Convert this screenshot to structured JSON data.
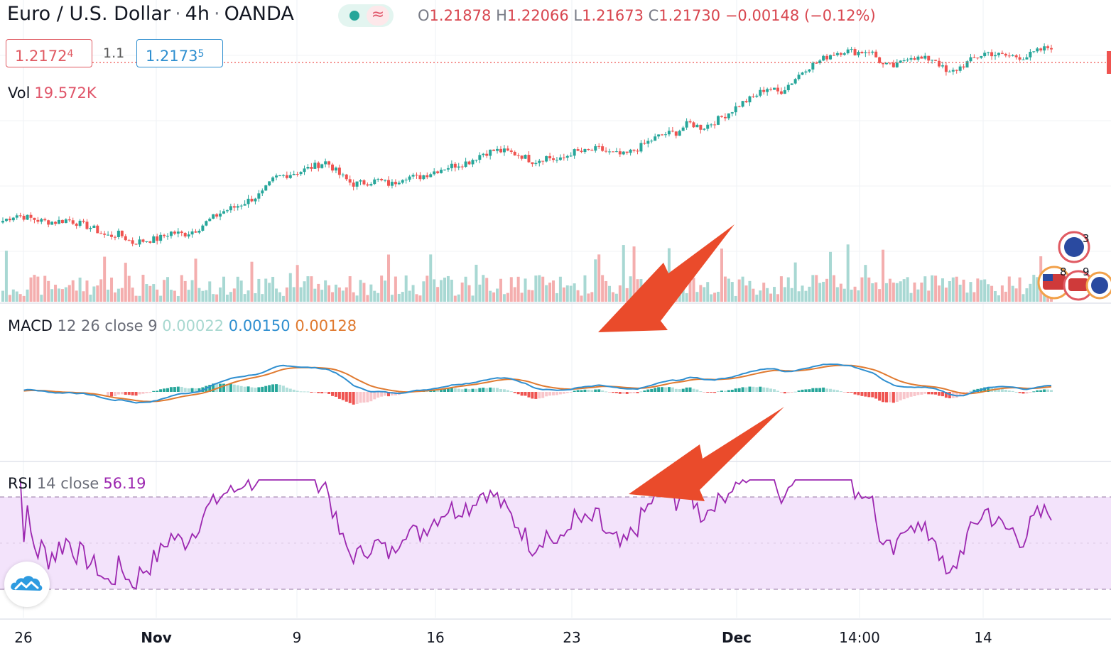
{
  "header": {
    "symbol": "Euro / U.S. Dollar",
    "interval": "4h",
    "exchange": "OANDA",
    "sep": "·",
    "status_icon": "≈",
    "ohlc": {
      "o_label": "O",
      "o": "1.21878",
      "h_label": "H",
      "h": "1.22066",
      "l_label": "L",
      "l": "1.21673",
      "c_label": "C",
      "c": "1.21730",
      "change": "−0.00148 (−0.12%)"
    }
  },
  "quote": {
    "bid_main": "1.2172",
    "bid_pip": "4",
    "spread": "1.1",
    "ask_main": "1.2173",
    "ask_pip": "5"
  },
  "volume_legend": {
    "label": "Vol",
    "value": "19.572K"
  },
  "macd_legend": {
    "label": "MACD",
    "params": "12 26 close 9",
    "hist": "0.00022",
    "macd": "0.00150",
    "signal": "0.00128"
  },
  "rsi_legend": {
    "label": "RSI",
    "params": "14 close",
    "value": "56.19"
  },
  "x_axis": [
    {
      "label": "26",
      "bold": false
    },
    {
      "label": "Nov",
      "bold": true
    },
    {
      "label": "9",
      "bold": false
    },
    {
      "label": "16",
      "bold": false
    },
    {
      "label": "23",
      "bold": false
    },
    {
      "label": "Dec",
      "bold": true
    },
    {
      "label": "14:00",
      "bold": false
    },
    {
      "label": "14",
      "bold": false
    }
  ],
  "events": {
    "top_count": "3",
    "bottom_count_1": "8",
    "bottom_count_2": "9"
  },
  "colors": {
    "up": "#26a69a",
    "down": "#ef5350",
    "macd": "#2f8fd0",
    "signal": "#e07a30",
    "rsi": "#9c27b0",
    "rsi_band": "#f3e3fb",
    "annotation_arrow": "#ea4b2b"
  },
  "chart_data": {
    "type": "candlestick",
    "price_path": [
      1.1646,
      1.1665,
      1.1655,
      1.1645,
      1.1642,
      1.165,
      1.1636,
      1.1622,
      1.1598,
      1.1605,
      1.1578,
      1.1585,
      1.159,
      1.161,
      1.1604,
      1.162,
      1.165,
      1.1675,
      1.169,
      1.171,
      1.173,
      1.178,
      1.179,
      1.18,
      1.1815,
      1.183,
      1.179,
      1.176,
      1.1765,
      1.1772,
      1.1758,
      1.1785,
      1.178,
      1.1795,
      1.181,
      1.182,
      1.183,
      1.1855,
      1.1865,
      1.186,
      1.185,
      1.183,
      1.1845,
      1.1832,
      1.186,
      1.186,
      1.187,
      1.1855,
      1.185,
      1.187,
      1.1895,
      1.1915,
      1.192,
      1.195,
      1.1935,
      1.1955,
      1.198,
      1.201,
      1.203,
      1.206,
      1.2045,
      1.208,
      1.212,
      1.214,
      1.2165,
      1.2175,
      1.217,
      1.2175,
      1.213,
      1.2125,
      1.216,
      1.2148,
      1.215,
      1.21,
      1.2125,
      1.215,
      1.217,
      1.216,
      1.2158,
      1.2155,
      1.2174,
      1.2188
    ],
    "volume_note": "volume bars per candle, colored by candle direction",
    "macd": {
      "hist": 0.00022,
      "macd": 0.0015,
      "signal": 0.00128
    },
    "rsi": {
      "period": 14,
      "value": 56.19,
      "upper_band": 70,
      "lower_band": 30
    },
    "x_labels": [
      "26",
      "Nov",
      "9",
      "16",
      "23",
      "Dec",
      "14:00",
      "14"
    ],
    "last_price": 1.21724
  }
}
